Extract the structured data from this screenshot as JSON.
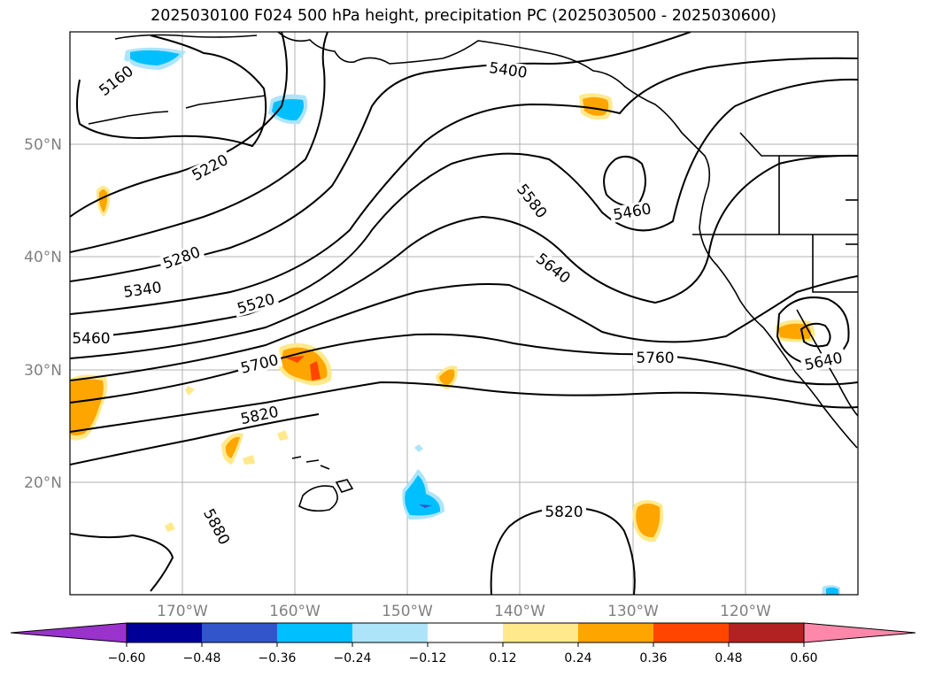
{
  "title": "2025030100 F024 500 hPa height, precipitation PC (2025030500 - 2025030600)",
  "lat_labels": [
    "50°N",
    "40°N",
    "30°N",
    "20°N"
  ],
  "lon_labels": [
    "170°W",
    "160°W",
    "150°W",
    "140°W",
    "130°W",
    "120°W"
  ],
  "contour_labels": [
    "5160",
    "5220",
    "5280",
    "5340",
    "5460",
    "5520",
    "5700",
    "5820",
    "5880",
    "5400",
    "5580",
    "5640",
    "5460",
    "5760",
    "5640",
    "5820"
  ],
  "colorbar": {
    "ticks": [
      "−0.60",
      "−0.48",
      "−0.36",
      "−0.24",
      "−0.12",
      "0.12",
      "0.24",
      "0.36",
      "0.48",
      "0.60"
    ],
    "colors": [
      "#9933cc",
      "#000099",
      "#3355cc",
      "#00bfff",
      "#aee4fa",
      "#ffffff",
      "#ffe98c",
      "#ffa500",
      "#ff4500",
      "#b22222",
      "#ff88aa"
    ]
  },
  "colors": {
    "warm_light": "#ffe98c",
    "warm_mid": "#ffa500",
    "warm_strong": "#ff4500",
    "cool_light": "#aee4fa",
    "cool_mid": "#00bfff",
    "cool_strong": "#3355cc",
    "grid": "#b0b0b0",
    "contour": "#000000"
  }
}
